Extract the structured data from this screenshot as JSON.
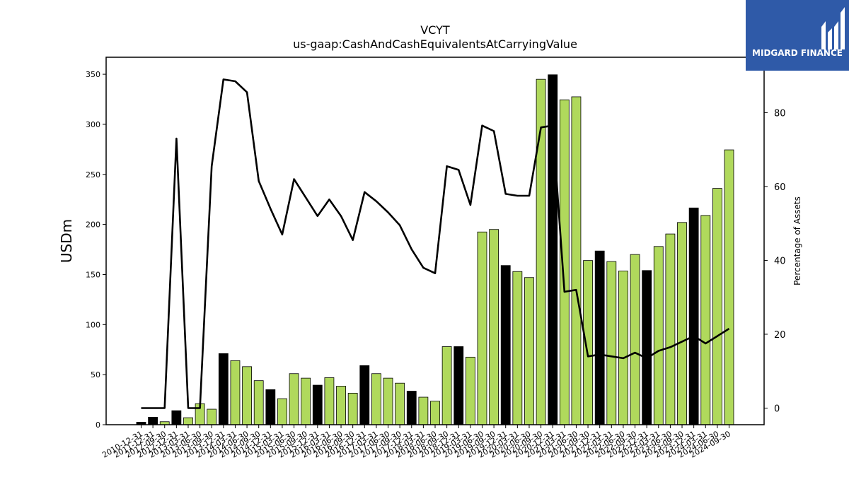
{
  "brand": {
    "name": "MIDGARD FINANCE",
    "logo_color": "#2f5aa8"
  },
  "chart_data": {
    "type": "bar",
    "title": "VCYT",
    "subtitle": "us-gaap:CashAndCashEquivalentsAtCarryingValue",
    "ylabel": "USDm",
    "y2label": "Percentage of Assets",
    "ylim": [
      0,
      367
    ],
    "y2lim": [
      -4.5,
      95
    ],
    "yticks": [
      0,
      50,
      100,
      150,
      200,
      250,
      300,
      350
    ],
    "y2ticks": [
      0,
      20,
      40,
      60,
      80
    ],
    "categories": [
      "2010-12-31",
      "2011-12-31",
      "2012-09-30",
      "2012-12-31",
      "2013-03-31",
      "2013-06-30",
      "2013-09-30",
      "2013-12-31",
      "2014-03-31",
      "2014-06-30",
      "2014-09-30",
      "2014-12-31",
      "2015-03-31",
      "2015-06-30",
      "2015-09-30",
      "2015-12-31",
      "2016-03-31",
      "2016-06-30",
      "2016-09-30",
      "2016-12-31",
      "2017-03-31",
      "2017-06-30",
      "2017-09-30",
      "2017-12-31",
      "2018-03-31",
      "2018-06-30",
      "2018-09-30",
      "2018-12-31",
      "2019-03-31",
      "2019-06-30",
      "2019-09-30",
      "2019-12-31",
      "2020-03-31",
      "2020-06-30",
      "2020-09-30",
      "2020-12-31",
      "2021-03-31",
      "2021-06-30",
      "2021-09-30",
      "2021-12-31",
      "2022-03-31",
      "2022-06-30",
      "2022-09-30",
      "2022-12-31",
      "2023-03-31",
      "2023-06-30",
      "2023-09-30",
      "2023-12-31",
      "2024-03-31",
      "2024-06-30",
      "2024-09-30"
    ],
    "series": [
      {
        "type": "bar",
        "values": [
          2.5,
          7.5,
          3,
          14,
          7,
          21,
          15.5,
          71,
          64,
          58,
          44,
          35,
          26,
          51,
          46.5,
          39.5,
          47,
          38.5,
          31.5,
          59,
          51,
          46.5,
          41.5,
          33.5,
          27.5,
          23.5,
          78,
          78,
          67.5,
          192.5,
          195,
          159,
          153,
          147,
          345,
          349.5,
          324.5,
          327.5,
          164,
          173.5,
          163,
          153.5,
          170,
          154,
          178,
          190.5,
          202,
          216.5,
          209,
          236,
          274.5
        ],
        "colors": [
          "#000000",
          "#000000",
          "#b0d95c",
          "#000000",
          "#b0d95c",
          "#b0d95c",
          "#b0d95c",
          "#000000",
          "#b0d95c",
          "#b0d95c",
          "#b0d95c",
          "#000000",
          "#b0d95c",
          "#b0d95c",
          "#b0d95c",
          "#000000",
          "#b0d95c",
          "#b0d95c",
          "#b0d95c",
          "#000000",
          "#b0d95c",
          "#b0d95c",
          "#b0d95c",
          "#000000",
          "#b0d95c",
          "#b0d95c",
          "#b0d95c",
          "#000000",
          "#b0d95c",
          "#b0d95c",
          "#b0d95c",
          "#000000",
          "#b0d95c",
          "#b0d95c",
          "#b0d95c",
          "#000000",
          "#b0d95c",
          "#b0d95c",
          "#b0d95c",
          "#000000",
          "#b0d95c",
          "#b0d95c",
          "#b0d95c",
          "#000000",
          "#b0d95c",
          "#b0d95c",
          "#b0d95c",
          "#000000",
          "#b0d95c",
          "#b0d95c",
          "#b0d95c"
        ]
      },
      {
        "type": "line",
        "axis": "right",
        "color": "#000000",
        "values": [
          0,
          0,
          0,
          73,
          0,
          0,
          65.5,
          89,
          88.5,
          85.5,
          61.5,
          54,
          47,
          62,
          57,
          52,
          56.5,
          52,
          45.5,
          58.5,
          56,
          53,
          49.5,
          43,
          38,
          36.5,
          65.5,
          64.5,
          55,
          76.5,
          75,
          58,
          57.5,
          57.5,
          76,
          76.5,
          31.5,
          32,
          14,
          14.5,
          14,
          13.5,
          15,
          13.5,
          15.5,
          16.5,
          18,
          19.5,
          17.5,
          19.5,
          21.5
        ]
      }
    ],
    "grid": false,
    "legend": "none"
  }
}
